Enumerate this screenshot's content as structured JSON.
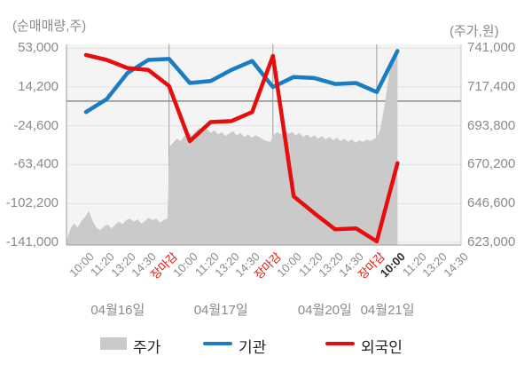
{
  "chart_data": {
    "type": "area+line combo (stock net-trading chart)",
    "grid": true,
    "legend_position": "bottom",
    "left_axis": {
      "label": "(순매매량,주)",
      "ticks": [
        53000,
        14200,
        -24600,
        -63400,
        -102200,
        -141000
      ],
      "tick_labels": [
        "53,000",
        "14,200",
        "-24,600",
        "-63,400",
        "-102,200",
        "-141,000"
      ],
      "range": [
        -141000,
        53000
      ]
    },
    "right_axis": {
      "label": "(주가,원)",
      "ticks": [
        741000,
        717400,
        693800,
        670200,
        646600,
        623000
      ],
      "tick_labels": [
        "741,000",
        "717,400",
        "693,800",
        "670,200",
        "646,600",
        "623,000"
      ],
      "range": [
        623000,
        741000
      ]
    },
    "x_axis": {
      "tick_labels": [
        {
          "label": "10:00",
          "style": "normal"
        },
        {
          "label": "11:20",
          "style": "normal"
        },
        {
          "label": "13:20",
          "style": "normal"
        },
        {
          "label": "14:30",
          "style": "normal"
        },
        {
          "label": "장마감",
          "style": "close"
        },
        {
          "label": "10:00",
          "style": "normal"
        },
        {
          "label": "11:20",
          "style": "normal"
        },
        {
          "label": "13:20",
          "style": "normal"
        },
        {
          "label": "14:30",
          "style": "normal"
        },
        {
          "label": "장마감",
          "style": "close"
        },
        {
          "label": "10:00",
          "style": "normal"
        },
        {
          "label": "11:20",
          "style": "normal"
        },
        {
          "label": "13:20",
          "style": "normal"
        },
        {
          "label": "14:30",
          "style": "normal"
        },
        {
          "label": "장마감",
          "style": "close"
        },
        {
          "label": "10:00",
          "style": "current"
        },
        {
          "label": "11:20",
          "style": "normal"
        },
        {
          "label": "13:20",
          "style": "normal"
        },
        {
          "label": "14:30",
          "style": "normal"
        }
      ],
      "day_separator_tick_indices": [
        4,
        9,
        14
      ],
      "dates": [
        "04월16일",
        "04월17일",
        "04월20일",
        "04월21일"
      ]
    },
    "series": [
      {
        "name": "주가",
        "type": "area",
        "axis": "right",
        "color": "#cacaca",
        "segments": [
          {
            "start_idx": -0.94,
            "step": 0.18,
            "values": [
              624000,
              631000,
              634500,
              632000,
              636000,
              638500,
              642000,
              636000,
              632000,
              630500,
              632500,
              634000,
              631500,
              633500,
              635500,
              634000,
              636500,
              637500,
              635500,
              637000,
              634500,
              636000,
              638000,
              636500,
              637500,
              635000,
              636500,
              637500
            ]
          },
          {
            "start_idx": 4.02,
            "step": 0.18,
            "values": [
              681000,
              683500,
              686000,
              684500,
              687500,
              689500,
              688000,
              690500,
              692500,
              690000,
              692000,
              689500,
              691000,
              688500,
              690000,
              687500,
              689000,
              690500,
              688000,
              689500,
              687000,
              688500,
              686500,
              688000,
              687000,
              685500,
              684500,
              684000
            ]
          },
          {
            "start_idx": 9.02,
            "step": 0.18,
            "values": [
              688000,
              690000,
              688500,
              690500,
              689000,
              690000,
              688000,
              689500,
              687000,
              688500,
              686500,
              688000,
              686000,
              687500,
              685500,
              687000,
              685000,
              686500,
              684500,
              686000,
              684000,
              685500,
              683500,
              685000,
              684000,
              685500,
              684500,
              686000
            ]
          },
          {
            "start_idx": 13.98,
            "step": 0.085,
            "values": [
              686500,
              688000,
              691000,
              696000,
              702000,
              709000,
              716000,
              723000,
              730000,
              735500,
              732000,
              738000,
              740000
            ]
          }
        ]
      },
      {
        "name": "기관",
        "type": "line",
        "axis": "left",
        "color": "#1a7cc2",
        "values": [
          -11000,
          2000,
          28000,
          41000,
          42000,
          18000,
          20000,
          31000,
          40000,
          14000,
          24000,
          23000,
          17000,
          18000,
          9000,
          50000
        ]
      },
      {
        "name": "외국인",
        "type": "line",
        "axis": "left",
        "color": "#e60d0d",
        "values": [
          46000,
          41000,
          33000,
          31000,
          15000,
          -40000,
          -21000,
          -20000,
          -11000,
          45000,
          -95000,
          -112000,
          -128000,
          -127000,
          -140000,
          -62000
        ]
      }
    ],
    "colors": {
      "plot_background": "#f4f4f4",
      "gridline": "#e2e2e2",
      "zero_line": "#8a8a8a",
      "day_separator": "#9c9c9c",
      "axis_line": "#9c9c9c",
      "close_label": "#e8120c"
    }
  },
  "legend": {
    "items": [
      {
        "label": "주가",
        "swatch": "area",
        "color": "#cacaca"
      },
      {
        "label": "기관",
        "swatch": "line",
        "color": "#1a7cc2"
      },
      {
        "label": "외국인",
        "swatch": "line",
        "color": "#e60d0d"
      }
    ]
  }
}
